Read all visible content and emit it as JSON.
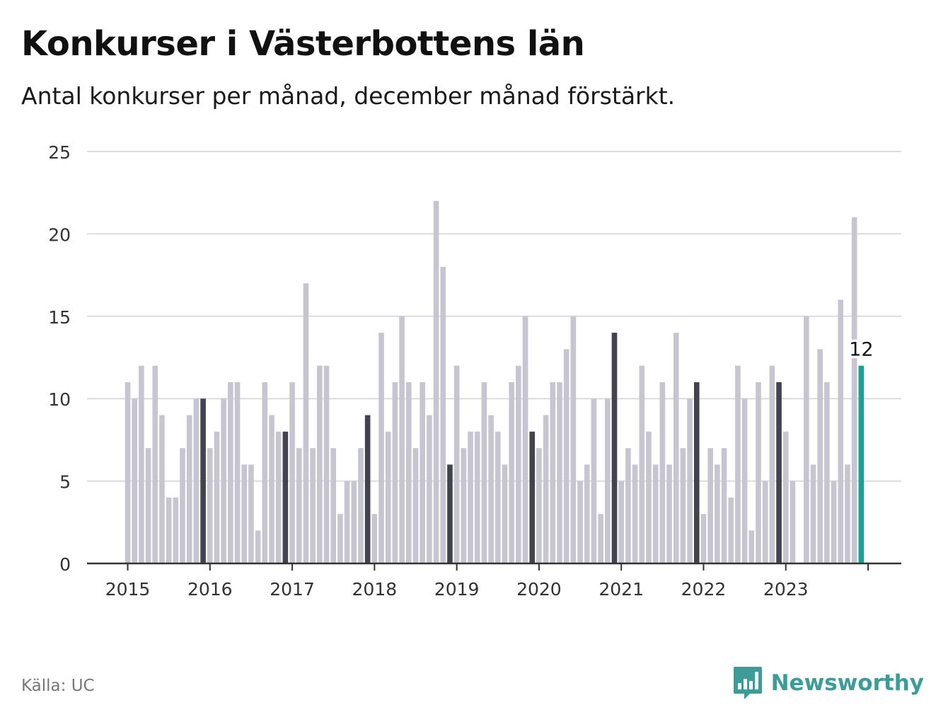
{
  "title": "Konkurser i Västerbottens län",
  "subtitle": "Antal konkurser per månad, december månad förstärkt.",
  "source": "Källa: UC",
  "brand": {
    "name": "Newsworthy",
    "icon": "newsworthy-logo-icon"
  },
  "colors": {
    "bar": "#c6c5d0",
    "december": "#43424f",
    "latest": "#13a497",
    "grid": "#dcdce0",
    "axis": "#333333",
    "brand": "#3d9c97"
  },
  "chart_data": {
    "type": "bar",
    "title": "Konkurser i Västerbottens län",
    "subtitle": "Antal konkurser per månad, december månad förstärkt.",
    "xlabel": "",
    "ylabel": "",
    "ylim": [
      0,
      25
    ],
    "yticks": [
      0,
      5,
      10,
      15,
      20,
      25
    ],
    "xtick_labels": [
      "2015",
      "2016",
      "2017",
      "2018",
      "2019",
      "2020",
      "2021",
      "2022",
      "2023"
    ],
    "grid": true,
    "start": "2015-01",
    "end": "2023-12",
    "values": [
      11,
      10,
      12,
      7,
      12,
      9,
      4,
      4,
      7,
      9,
      10,
      10,
      7,
      8,
      10,
      11,
      11,
      6,
      6,
      2,
      11,
      9,
      8,
      8,
      11,
      7,
      17,
      7,
      12,
      12,
      7,
      3,
      5,
      5,
      7,
      9,
      3,
      14,
      8,
      11,
      15,
      11,
      7,
      11,
      9,
      22,
      18,
      6,
      12,
      7,
      8,
      8,
      11,
      9,
      8,
      6,
      11,
      12,
      15,
      8,
      7,
      9,
      11,
      11,
      13,
      15,
      5,
      6,
      10,
      3,
      10,
      14,
      5,
      7,
      6,
      12,
      8,
      6,
      11,
      6,
      14,
      7,
      10,
      11,
      3,
      7,
      6,
      7,
      4,
      12,
      10,
      2,
      11,
      5,
      12,
      11,
      8,
      5,
      0,
      15,
      6,
      13,
      11,
      5,
      16,
      6,
      21,
      12
    ],
    "highlight": "december",
    "annotations": [
      {
        "label": "12",
        "value": 12,
        "month": "2023-12"
      }
    ]
  }
}
